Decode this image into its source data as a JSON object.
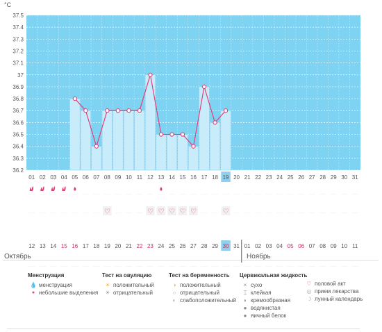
{
  "chart_data": {
    "type": "line",
    "unit": "°C",
    "y_ticks": [
      "37.5",
      "37.4",
      "37.3",
      "37.2",
      "37.1",
      "37",
      "36.9",
      "36.8",
      "36.7",
      "36.6",
      "36.5",
      "36.4",
      "36.3",
      "36.2"
    ],
    "ylim": [
      36.2,
      37.5
    ],
    "x_top": [
      "01",
      "02",
      "03",
      "04",
      "05",
      "06",
      "07",
      "08",
      "09",
      "10",
      "11",
      "12",
      "13",
      "14",
      "15",
      "16",
      "17",
      "18",
      "19",
      "20",
      "21",
      "22",
      "23",
      "24",
      "25",
      "26",
      "27",
      "28",
      "29",
      "30",
      "31"
    ],
    "x_bottom": [
      "12",
      "13",
      "14",
      "15",
      "16",
      "17",
      "18",
      "19",
      "20",
      "21",
      "22",
      "23",
      "24",
      "25",
      "26",
      "27",
      "28",
      "29",
      "30",
      "31",
      "01",
      "02",
      "03",
      "04",
      "05",
      "06",
      "07",
      "08",
      "09",
      "10",
      "11"
    ],
    "x_bottom_red": [
      3,
      4,
      10,
      11,
      18,
      24,
      25
    ],
    "highlight_index": 18,
    "temperatures": [
      null,
      null,
      null,
      null,
      36.8,
      36.7,
      36.4,
      36.7,
      36.7,
      36.7,
      36.7,
      37.0,
      36.5,
      36.5,
      36.5,
      36.4,
      36.9,
      36.6,
      36.7,
      null,
      null,
      null,
      null,
      null,
      null,
      null,
      null,
      null,
      null,
      null,
      null
    ],
    "menstruation": [
      "full",
      "full",
      "full",
      "full",
      "light",
      null,
      null,
      null,
      null,
      null,
      null,
      null,
      "light",
      null,
      null,
      null,
      null,
      null,
      null,
      null,
      null,
      null,
      null,
      null,
      null,
      null,
      null,
      null,
      null,
      null,
      null
    ],
    "intercourse": [
      7,
      11,
      12,
      13,
      14,
      15,
      18
    ],
    "colors": {
      "fill": "#7fd3f2",
      "bar": "#c9ecfb",
      "bar_border": "#8fcfee",
      "line": "#e0407a",
      "text_red": "#d8285a",
      "highlight": "#8fd0ef"
    }
  },
  "month_left": "Октябрь",
  "month_right": "Ноябрь",
  "legend": {
    "menstruation": {
      "title": "Менструация",
      "items": [
        "менструация",
        "небольшие выделения"
      ]
    },
    "ovulation": {
      "title": "Тест на овуляцию",
      "items": [
        "положительный",
        "отрицательный"
      ]
    },
    "pregnancy": {
      "title": "Тест на беременность",
      "items": [
        "положительный",
        "отрицательный",
        "слабоположительный"
      ]
    },
    "cervical": {
      "title": "Цервикальная жидкость",
      "items": [
        "сухо",
        "клейкая",
        "кремообразная",
        "водянистая",
        "яичный белок"
      ]
    },
    "other": {
      "items": [
        "половой акт",
        "прием лекарства",
        "лунный календарь"
      ]
    }
  }
}
